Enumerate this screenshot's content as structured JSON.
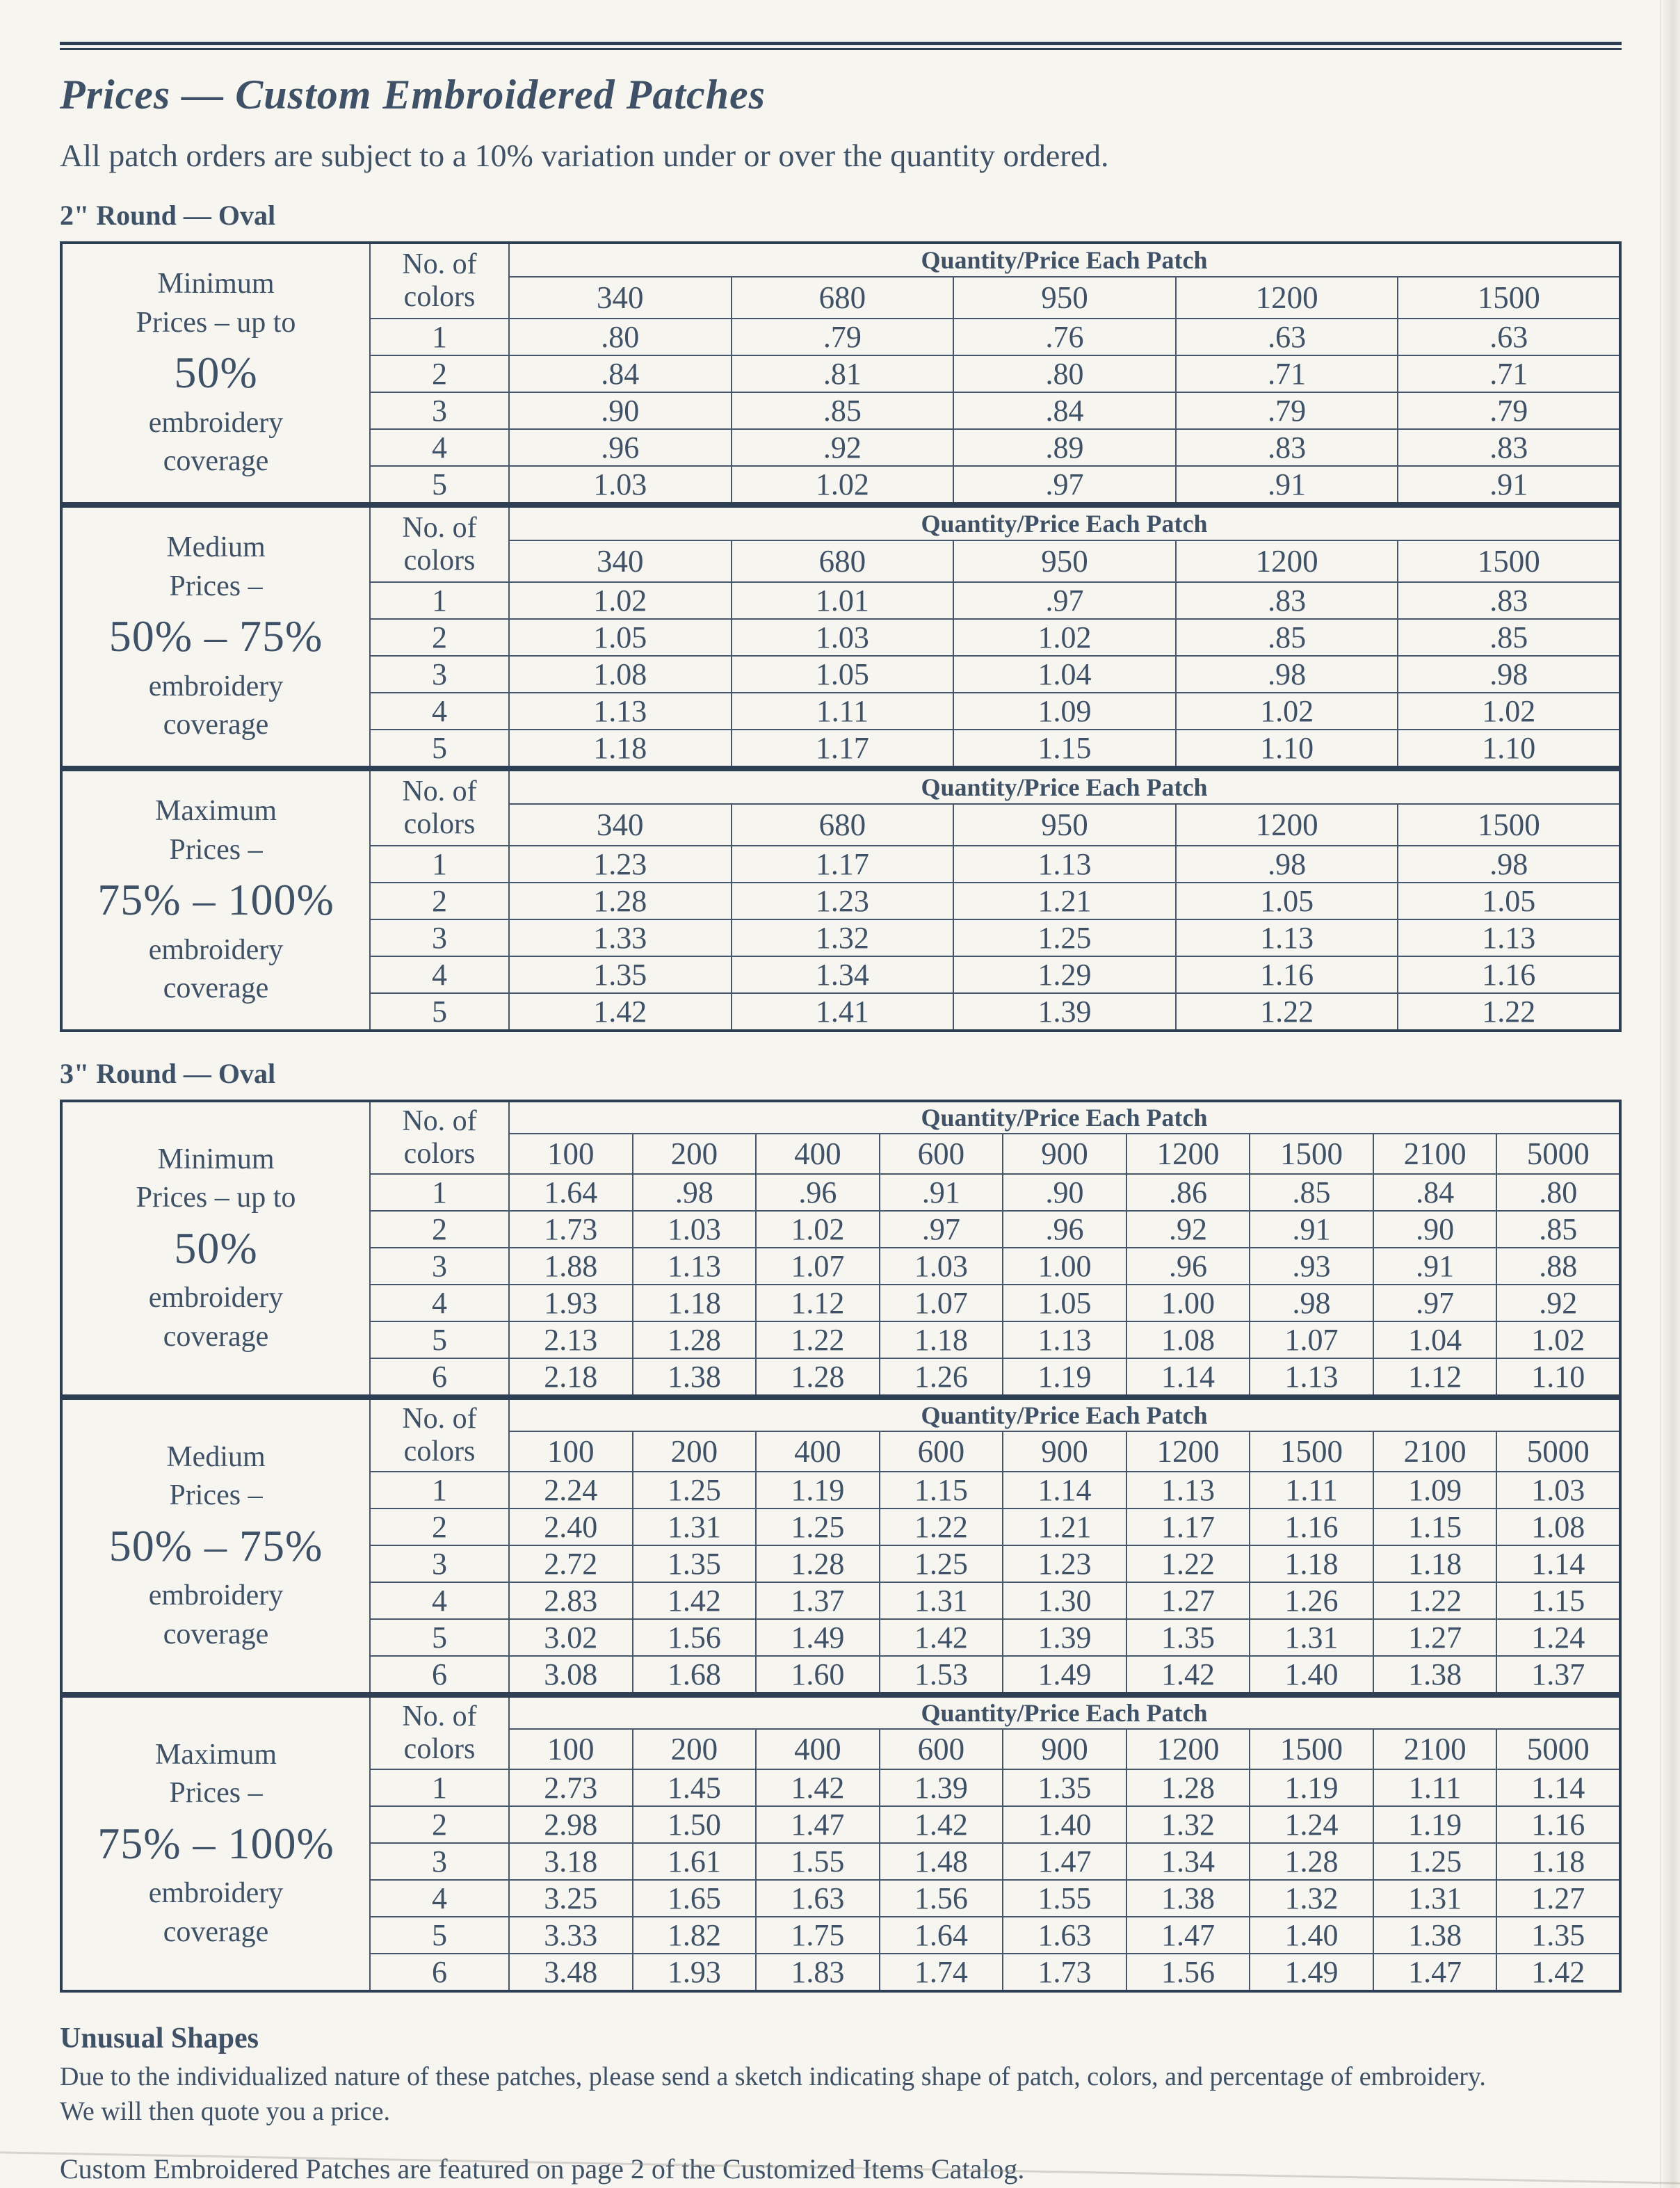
{
  "page": {
    "title": "Prices  —  Custom Embroidered Patches",
    "subtitle": "All patch orders are subject to a 10% variation under or over the quantity ordered.",
    "footnote": {
      "heading": "Unusual Shapes",
      "line1": "Due to the individualized nature of these patches, please send a sketch indicating shape of patch, colors, and percentage of embroidery.",
      "line2": "We will then quote you a price."
    },
    "footer_note": "Custom Embroidered Patches are featured on page 2 of the Customized Items Catalog.",
    "page_number": "2",
    "colors": {
      "text": "#3f5166",
      "border_inner": "#47566b",
      "border_outer": "#2e3f53",
      "background": "#f7f5ef"
    }
  },
  "table_header": {
    "colors_label_lines": [
      "No. of",
      "colors"
    ],
    "qty_label": "Quantity/Price Each Patch"
  },
  "sections": [
    {
      "heading": "2\" Round — Oval",
      "quantities": [
        "340",
        "680",
        "950",
        "1200",
        "1500"
      ],
      "tables": [
        {
          "label": {
            "top": [
              "Minimum",
              "Prices – up to"
            ],
            "big": "50%",
            "bottom": [
              "embroidery",
              "coverage"
            ]
          },
          "rows": [
            [
              "1",
              ".80",
              ".79",
              ".76",
              ".63",
              ".63"
            ],
            [
              "2",
              ".84",
              ".81",
              ".80",
              ".71",
              ".71"
            ],
            [
              "3",
              ".90",
              ".85",
              ".84",
              ".79",
              ".79"
            ],
            [
              "4",
              ".96",
              ".92",
              ".89",
              ".83",
              ".83"
            ],
            [
              "5",
              "1.03",
              "1.02",
              ".97",
              ".91",
              ".91"
            ]
          ]
        },
        {
          "label": {
            "top": [
              "Medium",
              "Prices –"
            ],
            "big": "50% – 75%",
            "bottom": [
              "embroidery",
              "coverage"
            ]
          },
          "rows": [
            [
              "1",
              "1.02",
              "1.01",
              ".97",
              ".83",
              ".83"
            ],
            [
              "2",
              "1.05",
              "1.03",
              "1.02",
              ".85",
              ".85"
            ],
            [
              "3",
              "1.08",
              "1.05",
              "1.04",
              ".98",
              ".98"
            ],
            [
              "4",
              "1.13",
              "1.11",
              "1.09",
              "1.02",
              "1.02"
            ],
            [
              "5",
              "1.18",
              "1.17",
              "1.15",
              "1.10",
              "1.10"
            ]
          ]
        },
        {
          "label": {
            "top": [
              "Maximum",
              "Prices –"
            ],
            "big": "75% – 100%",
            "bottom": [
              "embroidery",
              "coverage"
            ]
          },
          "rows": [
            [
              "1",
              "1.23",
              "1.17",
              "1.13",
              ".98",
              ".98"
            ],
            [
              "2",
              "1.28",
              "1.23",
              "1.21",
              "1.05",
              "1.05"
            ],
            [
              "3",
              "1.33",
              "1.32",
              "1.25",
              "1.13",
              "1.13"
            ],
            [
              "4",
              "1.35",
              "1.34",
              "1.29",
              "1.16",
              "1.16"
            ],
            [
              "5",
              "1.42",
              "1.41",
              "1.39",
              "1.22",
              "1.22"
            ]
          ]
        }
      ]
    },
    {
      "heading": "3\" Round — Oval",
      "quantities": [
        "100",
        "200",
        "400",
        "600",
        "900",
        "1200",
        "1500",
        "2100",
        "5000"
      ],
      "tables": [
        {
          "label": {
            "top": [
              "Minimum",
              "Prices – up to"
            ],
            "big": "50%",
            "bottom": [
              "embroidery",
              "coverage"
            ]
          },
          "rows": [
            [
              "1",
              "1.64",
              ".98",
              ".96",
              ".91",
              ".90",
              ".86",
              ".85",
              ".84",
              ".80"
            ],
            [
              "2",
              "1.73",
              "1.03",
              "1.02",
              ".97",
              ".96",
              ".92",
              ".91",
              ".90",
              ".85"
            ],
            [
              "3",
              "1.88",
              "1.13",
              "1.07",
              "1.03",
              "1.00",
              ".96",
              ".93",
              ".91",
              ".88"
            ],
            [
              "4",
              "1.93",
              "1.18",
              "1.12",
              "1.07",
              "1.05",
              "1.00",
              ".98",
              ".97",
              ".92"
            ],
            [
              "5",
              "2.13",
              "1.28",
              "1.22",
              "1.18",
              "1.13",
              "1.08",
              "1.07",
              "1.04",
              "1.02"
            ],
            [
              "6",
              "2.18",
              "1.38",
              "1.28",
              "1.26",
              "1.19",
              "1.14",
              "1.13",
              "1.12",
              "1.10"
            ]
          ]
        },
        {
          "label": {
            "top": [
              "Medium",
              "Prices –"
            ],
            "big": "50% – 75%",
            "bottom": [
              "embroidery",
              "coverage"
            ]
          },
          "rows": [
            [
              "1",
              "2.24",
              "1.25",
              "1.19",
              "1.15",
              "1.14",
              "1.13",
              "1.11",
              "1.09",
              "1.03"
            ],
            [
              "2",
              "2.40",
              "1.31",
              "1.25",
              "1.22",
              "1.21",
              "1.17",
              "1.16",
              "1.15",
              "1.08"
            ],
            [
              "3",
              "2.72",
              "1.35",
              "1.28",
              "1.25",
              "1.23",
              "1.22",
              "1.18",
              "1.18",
              "1.14"
            ],
            [
              "4",
              "2.83",
              "1.42",
              "1.37",
              "1.31",
              "1.30",
              "1.27",
              "1.26",
              "1.22",
              "1.15"
            ],
            [
              "5",
              "3.02",
              "1.56",
              "1.49",
              "1.42",
              "1.39",
              "1.35",
              "1.31",
              "1.27",
              "1.24"
            ],
            [
              "6",
              "3.08",
              "1.68",
              "1.60",
              "1.53",
              "1.49",
              "1.42",
              "1.40",
              "1.38",
              "1.37"
            ]
          ]
        },
        {
          "label": {
            "top": [
              "Maximum",
              "Prices –"
            ],
            "big": "75% – 100%",
            "bottom": [
              "embroidery",
              "coverage"
            ]
          },
          "rows": [
            [
              "1",
              "2.73",
              "1.45",
              "1.42",
              "1.39",
              "1.35",
              "1.28",
              "1.19",
              "1.11",
              "1.14"
            ],
            [
              "2",
              "2.98",
              "1.50",
              "1.47",
              "1.42",
              "1.40",
              "1.32",
              "1.24",
              "1.19",
              "1.16"
            ],
            [
              "3",
              "3.18",
              "1.61",
              "1.55",
              "1.48",
              "1.47",
              "1.34",
              "1.28",
              "1.25",
              "1.18"
            ],
            [
              "4",
              "3.25",
              "1.65",
              "1.63",
              "1.56",
              "1.55",
              "1.38",
              "1.32",
              "1.31",
              "1.27"
            ],
            [
              "5",
              "3.33",
              "1.82",
              "1.75",
              "1.64",
              "1.63",
              "1.47",
              "1.40",
              "1.38",
              "1.35"
            ],
            [
              "6",
              "3.48",
              "1.93",
              "1.83",
              "1.74",
              "1.73",
              "1.56",
              "1.49",
              "1.47",
              "1.42"
            ]
          ]
        }
      ]
    }
  ]
}
